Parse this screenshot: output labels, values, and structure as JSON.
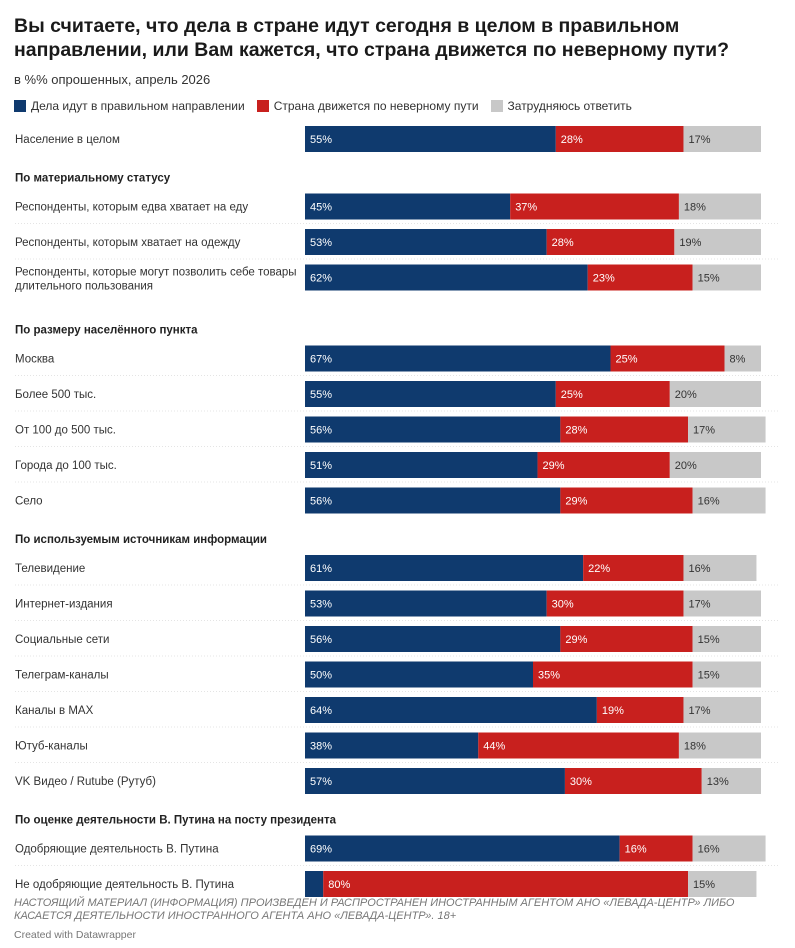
{
  "title": "Вы считаете, что дела в стране идут сегодня в целом в правильном направлении, или Вам кажется, что страна движется по неверному пути?",
  "subtitle": "в %% опрошенных, апрель 2026",
  "colors": {
    "right": "#0f3a6e",
    "wrong": "#c8201e",
    "unsure": "#c8c8c8"
  },
  "chart_data": {
    "type": "bar",
    "orientation": "horizontal-stacked",
    "series": [
      {
        "name": "Дела идут в правильном направлении",
        "color": "#0f3a6e"
      },
      {
        "name": "Страна движется по неверному пути",
        "color": "#c8201e"
      },
      {
        "name": "Затрудняюсь ответить",
        "color": "#c8c8c8"
      }
    ],
    "rows": [
      {
        "kind": "bar",
        "label": "Население в целом",
        "values": [
          55,
          28,
          17
        ]
      },
      {
        "kind": "header",
        "label": "По материальному статусу"
      },
      {
        "kind": "bar",
        "label": "Респонденты, которым едва хватает на еду",
        "values": [
          45,
          37,
          18
        ]
      },
      {
        "kind": "bar",
        "label": "Респонденты, которым хватает на одежду",
        "values": [
          53,
          28,
          19
        ]
      },
      {
        "kind": "bar",
        "label": "Респонденты, которые могут позволить себе товары длительного пользования",
        "values": [
          62,
          23,
          15
        ]
      },
      {
        "kind": "header",
        "label": "По размеру населённого пункта"
      },
      {
        "kind": "bar",
        "label": "Москва",
        "values": [
          67,
          25,
          8
        ]
      },
      {
        "kind": "bar",
        "label": "Более 500 тыс.",
        "values": [
          55,
          25,
          20
        ]
      },
      {
        "kind": "bar",
        "label": "От 100 до 500 тыс.",
        "values": [
          56,
          28,
          17
        ]
      },
      {
        "kind": "bar",
        "label": "Города до 100 тыс.",
        "values": [
          51,
          29,
          20
        ]
      },
      {
        "kind": "bar",
        "label": "Село",
        "values": [
          56,
          29,
          16
        ]
      },
      {
        "kind": "header",
        "label": "По используемым источникам информации"
      },
      {
        "kind": "bar",
        "label": "Телевидение",
        "values": [
          61,
          22,
          16
        ]
      },
      {
        "kind": "bar",
        "label": "Интернет-издания",
        "values": [
          53,
          30,
          17
        ]
      },
      {
        "kind": "bar",
        "label": "Социальные сети",
        "values": [
          56,
          29,
          15
        ]
      },
      {
        "kind": "bar",
        "label": "Телеграм-каналы",
        "values": [
          50,
          35,
          15
        ]
      },
      {
        "kind": "bar",
        "label": "Каналы в MAX",
        "values": [
          64,
          19,
          17
        ]
      },
      {
        "kind": "bar",
        "label": "Ютуб-каналы",
        "values": [
          38,
          44,
          18
        ]
      },
      {
        "kind": "bar",
        "label": "VK Видео / Rutube (Рутуб)",
        "values": [
          57,
          30,
          13
        ]
      },
      {
        "kind": "header",
        "label": "По оценке деятельности В. Путина на посту президента"
      },
      {
        "kind": "bar",
        "label": "Одобряющие деятельность В. Путина",
        "values": [
          69,
          16,
          16
        ]
      },
      {
        "kind": "bar",
        "label": "Не одобряющие деятельность В. Путина",
        "values": [
          4,
          80,
          15
        ],
        "labels": [
          "",
          "80%",
          "15%"
        ]
      }
    ]
  },
  "footer": {
    "note": "Настоящий материал (информация) произведен и распространен иностранным агентом АНО «Левада-Центр» либо касается деятельности иностранного агента АНО «Левада-Центр». 18+",
    "credit": "Created with Datawrapper"
  }
}
